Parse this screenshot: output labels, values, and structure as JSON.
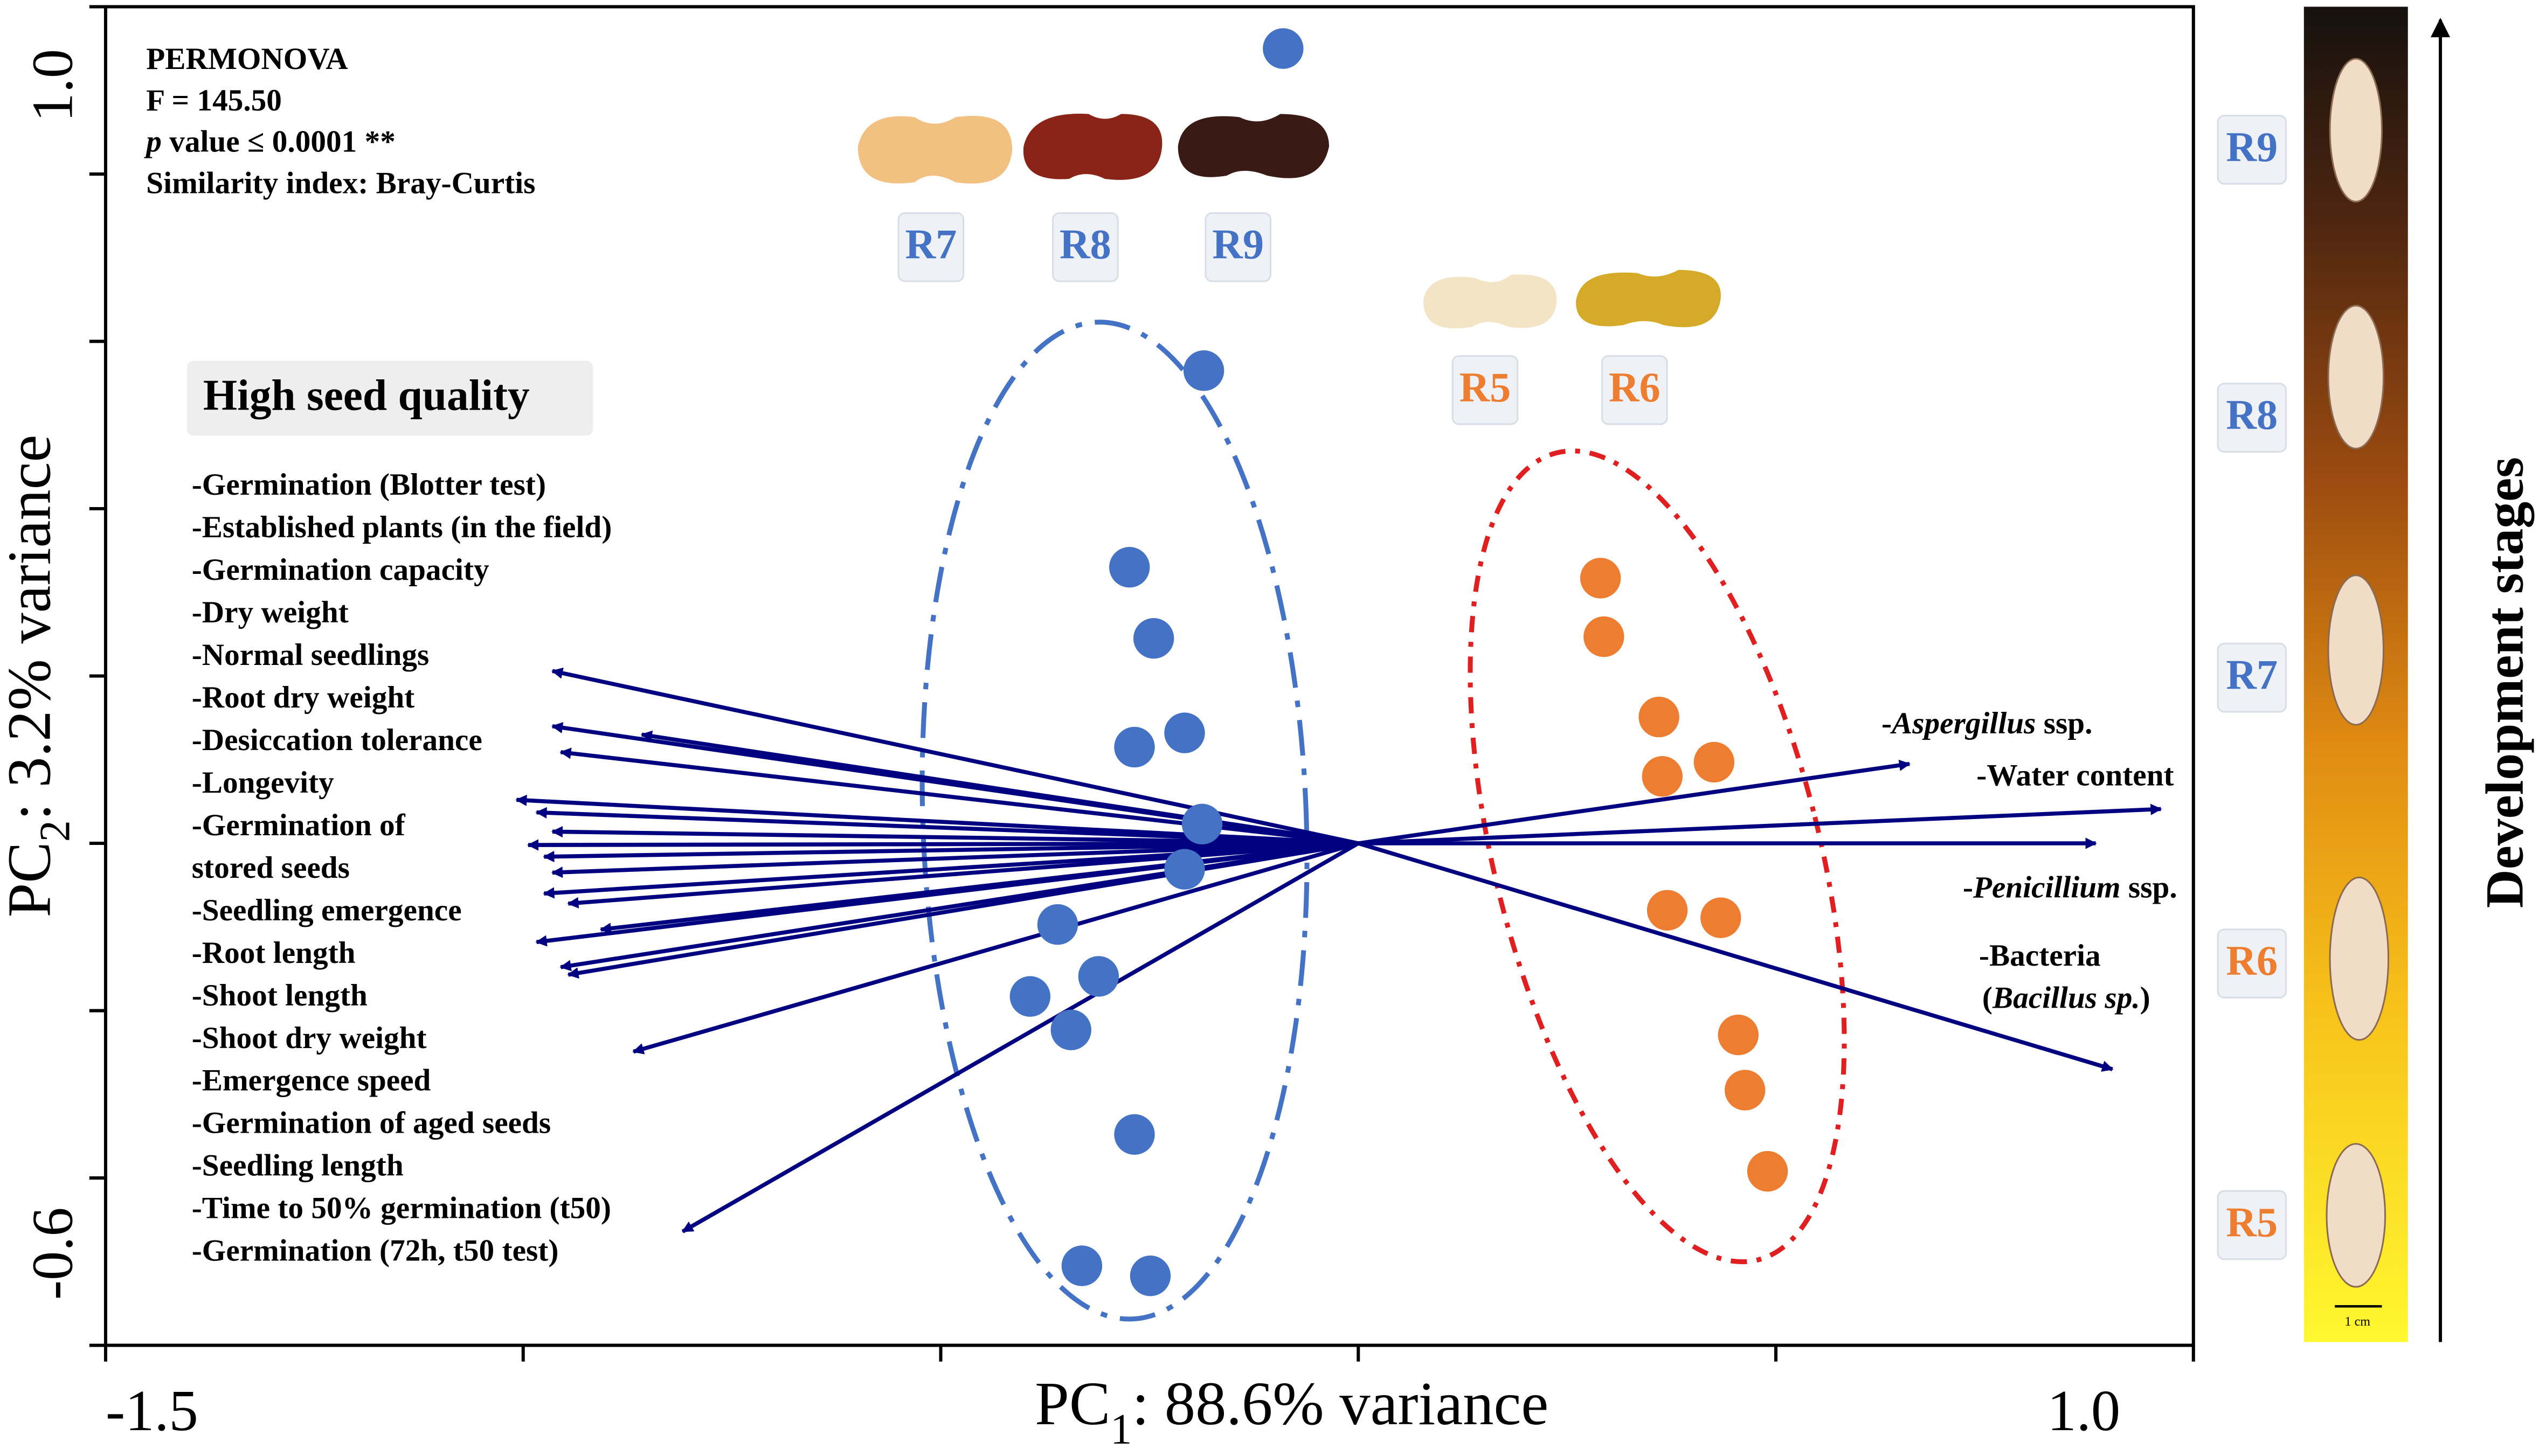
{
  "chart_data": {
    "type": "scatter",
    "stats": [
      [
        "PERMONOVA"
      ],
      [
        "F = 145.50"
      ],
      [
        "p",
        " value ≤ 0.0001 **"
      ],
      [
        "Similarity index: Bray-Curtis"
      ]
    ],
    "x_label": [
      "PC",
      "1",
      ": 88.6% variance"
    ],
    "y_label": [
      "PC",
      "2",
      ": 3.2% variance"
    ],
    "xlim": [
      -1.5,
      1
    ],
    "ylim": [
      -0.6,
      1
    ],
    "xticks": [
      -1.5,
      -1,
      -0.5,
      0,
      0.5,
      1
    ],
    "yticks": [
      -0.6,
      -0.4,
      -0.2,
      0,
      0.2,
      0.4,
      0.6,
      0.8,
      1
    ],
    "xtick_labels": [
      -1.5,
      {
        "value": 1,
        "label": "1.0"
      }
    ],
    "ytick_labels": [
      -0.6,
      {
        "value": 1,
        "label": "1.0"
      }
    ],
    "series": [
      {
        "color": "#4472c4",
        "x": [
          -0.09,
          -0.185,
          -0.274,
          -0.245,
          -0.208,
          -0.268,
          -0.187,
          -0.208,
          -0.36,
          -0.311,
          -0.393,
          -0.344,
          -0.268,
          -0.331,
          -0.249
        ],
        "values": [
          0.95,
          0.565,
          0.33,
          0.245,
          0.132,
          0.115,
          0.023,
          -0.031,
          -0.097,
          -0.159,
          -0.183,
          -0.223,
          -0.348,
          -0.505,
          -0.517
        ]
      },
      {
        "color": "#ed7d31",
        "x": [
          0.29,
          0.294,
          0.36,
          0.364,
          0.426,
          0.37,
          0.434,
          0.455,
          0.463,
          0.49
        ],
        "values": [
          0.317,
          0.247,
          0.151,
          0.08,
          0.097,
          -0.08,
          -0.089,
          -0.229,
          -0.295,
          -0.392
        ]
      }
    ],
    "vectors": {
      "color": "#000080",
      "x": [
        -0.965,
        -0.965,
        -0.858,
        -0.955,
        -1.008,
        -0.984,
        -0.965,
        -0.994,
        -0.975,
        -0.965,
        -0.975,
        -0.946,
        -0.907,
        -0.984,
        -0.955,
        -0.946,
        -0.868,
        -0.809,
        0.66,
        0.961,
        0.883,
        0.903
      ],
      "y": [
        0.206,
        0.14,
        0.13,
        0.109,
        0.052,
        0.037,
        0.014,
        -0.002,
        -0.016,
        -0.035,
        -0.06,
        -0.072,
        -0.103,
        -0.118,
        -0.148,
        -0.157,
        -0.249,
        -0.464,
        0.095,
        0.041,
        0,
        -0.27
      ]
    },
    "group_labels": [
      {
        "color": "#4472c4",
        "texts": [
          "R7",
          "R8",
          "R9"
        ]
      },
      {
        "color": "#ed7d31",
        "texts": [
          "R5",
          "R6"
        ]
      }
    ],
    "panel_title": "High seed quality",
    "traits": [
      "-Germination (Blotter test)",
      "-Established plants (in the field)",
      "-Germination capacity",
      "-Dry weight",
      "-Normal seedlings",
      "-Root dry weight",
      "-Desiccation tolerance",
      "-Longevity",
      "-Germination of",
      "stored seeds",
      "-Seedling emergence",
      "-Root length",
      "-Shoot length",
      "-Shoot dry weight",
      "-Emergence speed",
      "-Germination of aged seeds",
      "-Seedling length",
      "-Time to 50% germination (t50)",
      "-Germination (72h, t50 test)"
    ],
    "vector_labels": [
      [
        "-",
        "Aspergillus",
        " ssp."
      ],
      [
        "-Water content"
      ],
      [
        "-",
        "Penicillium",
        " ssp."
      ],
      [
        "-Bacteria"
      ],
      [
        "(",
        "Bacillus sp.",
        ")"
      ]
    ],
    "stage_labels": [
      {
        "text": "R9",
        "color": "#4472c4"
      },
      {
        "text": "R8",
        "color": "#4472c4"
      },
      {
        "text": "R7",
        "color": "#4472c4"
      },
      {
        "text": "R6",
        "color": "#ed7d31"
      },
      {
        "text": "R5",
        "color": "#ed7d31"
      }
    ],
    "scale_label": "1 cm",
    "stage_axis_label": "Development stages"
  }
}
